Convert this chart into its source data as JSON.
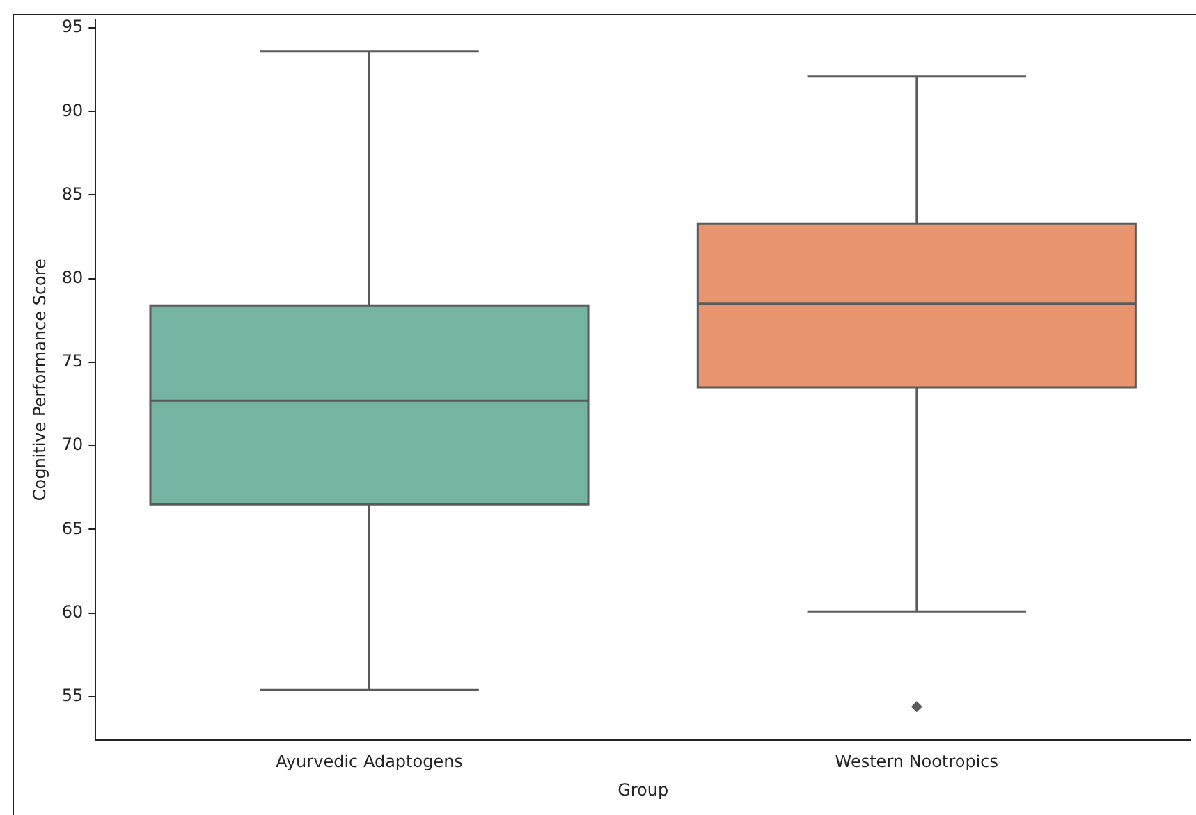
{
  "chart_data": {
    "type": "box",
    "xlabel": "Group",
    "ylabel": "Cognitive Performance Score",
    "categories": [
      "Ayurvedic Adaptogens",
      "Western Nootropics"
    ],
    "colors": [
      "#74b4a0",
      "#e8956f"
    ],
    "boxes": [
      {
        "low": 55.4,
        "q1": 66.5,
        "median": 72.7,
        "q3": 78.4,
        "high": 93.6
      },
      {
        "low": 60.1,
        "q1": 73.5,
        "median": 78.5,
        "q3": 83.3,
        "high": 92.1,
        "outliers": [
          54.4
        ]
      }
    ],
    "ylim": [
      52.4,
      95.5
    ],
    "yticks": [
      55,
      60,
      65,
      70,
      75,
      80,
      85,
      90,
      95
    ],
    "grid": false,
    "legend": false
  }
}
